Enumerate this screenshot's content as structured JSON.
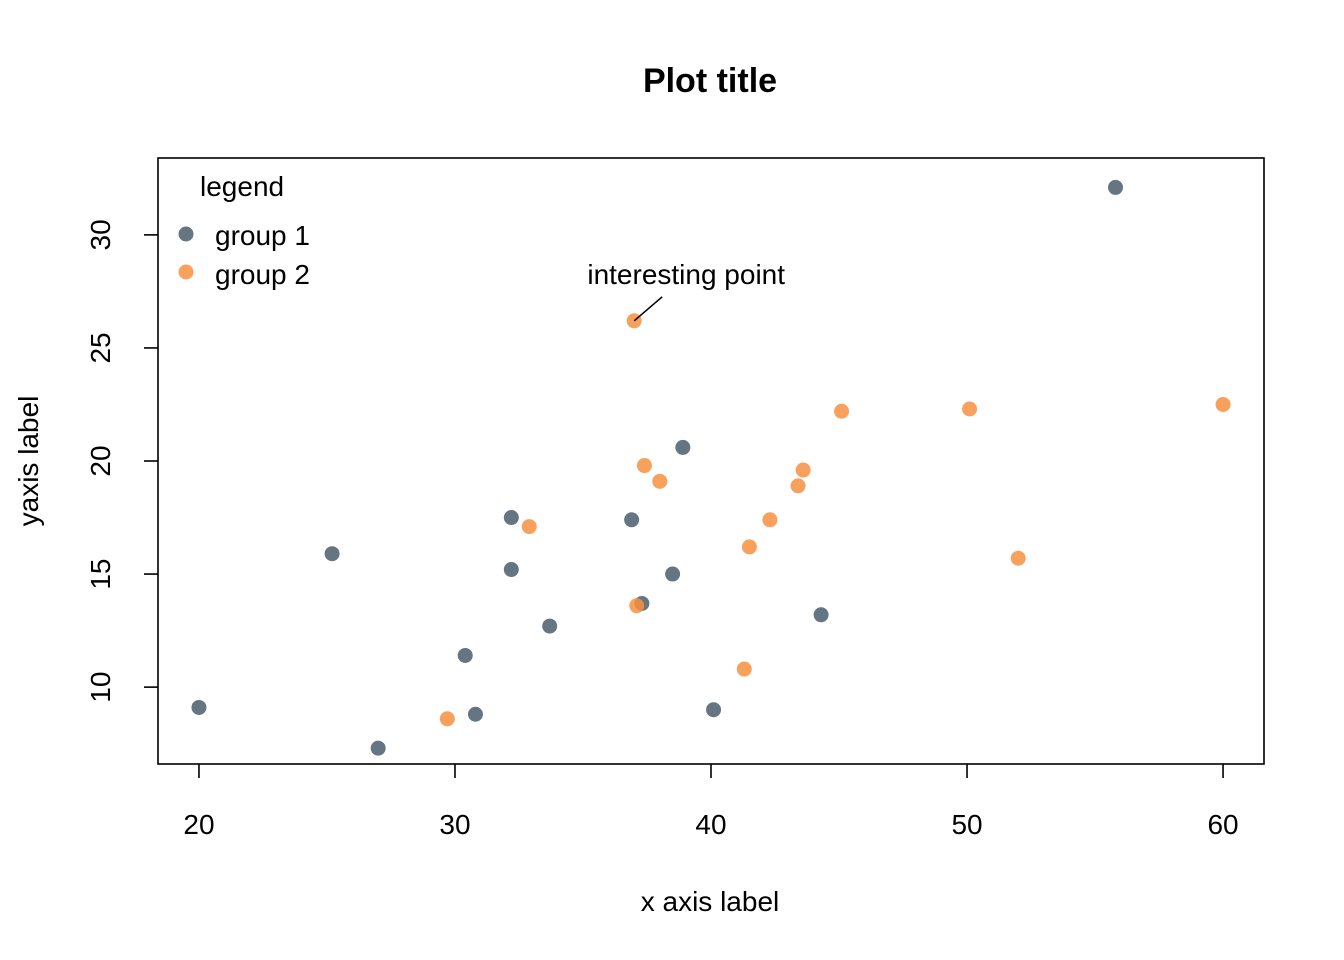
{
  "chart_data": {
    "type": "scatter",
    "title": "Plot title",
    "xlabel": "x axis label",
    "ylabel": "yaxis label",
    "xlim": [
      18.4,
      61.6
    ],
    "ylim": [
      6.6,
      33.4
    ],
    "xticks": [
      "20",
      "30",
      "40",
      "50",
      "60"
    ],
    "yticks": [
      "10",
      "15",
      "20",
      "25",
      "30"
    ],
    "grid": false,
    "legend": {
      "title": "legend",
      "position": "top-left",
      "entries": [
        {
          "label": "group 1",
          "color": "#4a5d6c"
        },
        {
          "label": "group 2",
          "color": "#f7913f"
        }
      ]
    },
    "series": [
      {
        "name": "group 1",
        "color": "#4a5d6c",
        "points": [
          [
            55.8,
            32.1
          ],
          [
            20.0,
            9.1
          ],
          [
            25.2,
            15.9
          ],
          [
            27.0,
            7.3
          ],
          [
            30.4,
            11.4
          ],
          [
            30.8,
            8.8
          ],
          [
            32.2,
            17.5
          ],
          [
            32.2,
            15.2
          ],
          [
            33.7,
            12.7
          ],
          [
            36.9,
            17.4
          ],
          [
            37.3,
            13.7
          ],
          [
            38.5,
            15.0
          ],
          [
            38.9,
            20.6
          ],
          [
            40.1,
            9.0
          ],
          [
            44.3,
            13.2
          ]
        ]
      },
      {
        "name": "group 2",
        "color": "#f7913f",
        "points": [
          [
            29.7,
            8.6
          ],
          [
            32.9,
            17.1
          ],
          [
            37.0,
            26.2
          ],
          [
            37.4,
            19.8
          ],
          [
            38.0,
            19.1
          ],
          [
            37.1,
            13.6
          ],
          [
            41.3,
            10.8
          ],
          [
            41.5,
            16.2
          ],
          [
            42.3,
            17.4
          ],
          [
            43.4,
            18.9
          ],
          [
            43.6,
            19.6
          ],
          [
            45.1,
            22.2
          ],
          [
            50.1,
            22.3
          ],
          [
            52.0,
            15.7
          ],
          [
            60.0,
            22.5
          ]
        ]
      }
    ],
    "annotations": [
      {
        "text": "interesting point",
        "x": 37.0,
        "y": 26.2
      }
    ]
  }
}
